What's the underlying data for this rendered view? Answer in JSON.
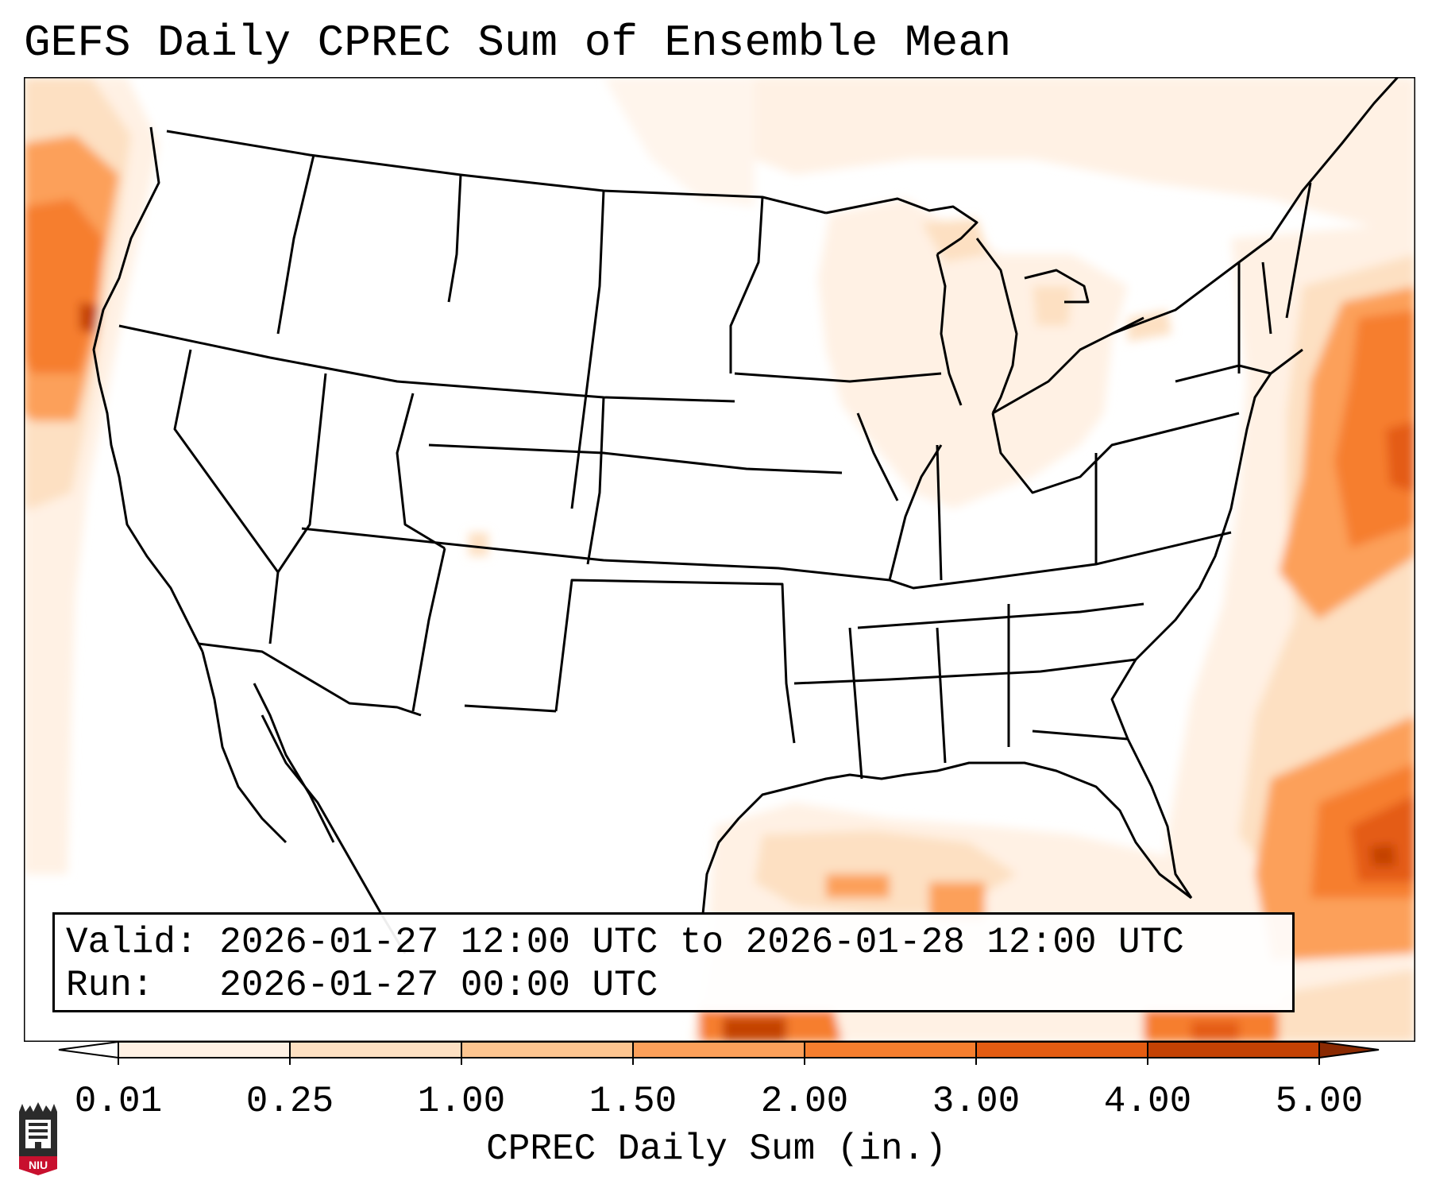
{
  "title": "GEFS Daily CPREC Sum of Ensemble Mean",
  "info": {
    "valid_label": "Valid:",
    "valid_value": "2026-01-27 12:00 UTC to 2026-01-28 12:00 UTC",
    "run_label": "Run:",
    "run_value": "2026-01-27 00:00 UTC"
  },
  "colorbar": {
    "label": "CPREC Daily Sum (in.)",
    "ticks": [
      "0.01",
      "0.25",
      "1.00",
      "1.50",
      "2.00",
      "3.00",
      "4.00",
      "5.00"
    ],
    "colors": [
      "#fff1e4",
      "#fde0c2",
      "#fdc590",
      "#fca05a",
      "#f67e2e",
      "#e45c12",
      "#c44204"
    ],
    "extend": "both"
  },
  "logo": {
    "text": "NIU",
    "color": "#c8102e"
  },
  "map": {
    "region": "Contiguous United States",
    "projection": "lambert-conformal"
  }
}
